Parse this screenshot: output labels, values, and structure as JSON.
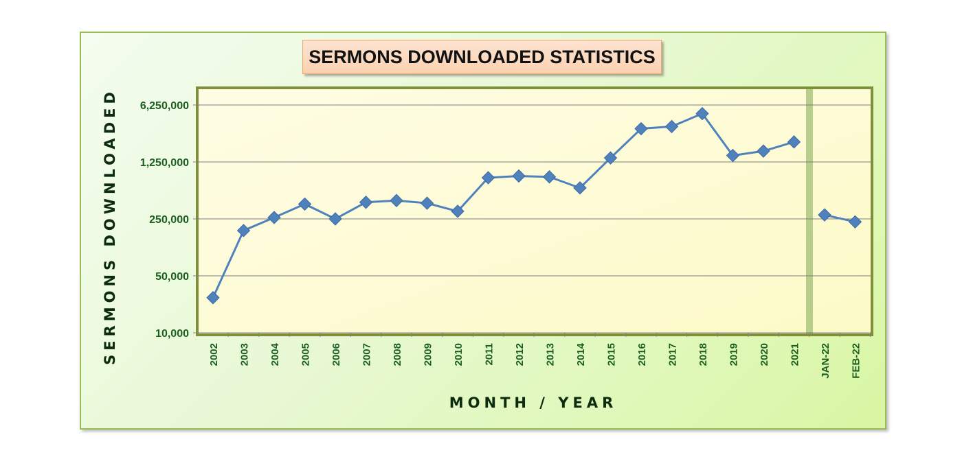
{
  "chart_data": {
    "type": "line",
    "title": "SERMONS DOWNLOADED STATISTICS",
    "xlabel": "MONTH / YEAR",
    "ylabel": "SERMONS DOWNLOADED",
    "y_scale": "log",
    "ylim": [
      10000,
      6250000
    ],
    "y_ticks": [
      10000,
      50000,
      250000,
      1250000,
      6250000
    ],
    "y_tick_labels": [
      "10,000",
      "50,000",
      "250,000",
      "1,250,000",
      "6,250,000"
    ],
    "grid": true,
    "legend": "none",
    "categories": [
      "2002",
      "2003",
      "2004",
      "2005",
      "2006",
      "2007",
      "2008",
      "2009",
      "2010",
      "2011",
      "2012",
      "2013",
      "2014",
      "2015",
      "2016",
      "2017",
      "2018",
      "2019",
      "2020",
      "2021",
      "JAN-22",
      "FEB-22"
    ],
    "series": [
      {
        "values": [
          27000,
          180000,
          260000,
          380000,
          250000,
          400000,
          420000,
          390000,
          310000,
          800000,
          840000,
          820000,
          600000,
          1400000,
          3200000,
          3400000,
          4900000,
          1500000,
          1700000,
          2200000,
          280000,
          230000
        ],
        "breaks_after": [
          "2021"
        ]
      }
    ],
    "colors": {
      "line": "#4f81bd",
      "marker": "#4f81bd",
      "plot_fill": "#fdfcd6",
      "plot_border": "#7f8f3a",
      "frame_border": "#9bbb59",
      "title_fill": "#fbd6b8",
      "label_text": "#1b5e20"
    }
  }
}
